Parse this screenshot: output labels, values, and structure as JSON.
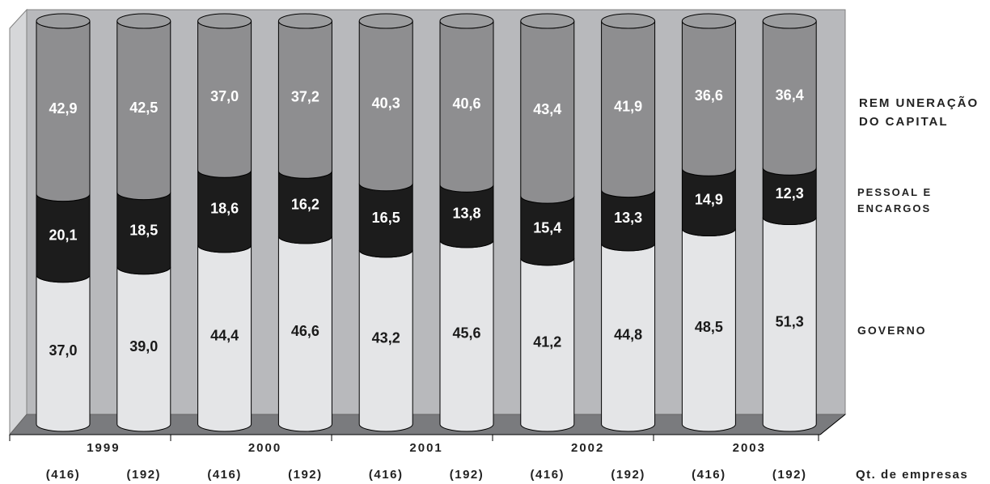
{
  "chart_data": {
    "type": "bar",
    "stacked": true,
    "style": "3d-cylinder",
    "year_groups": [
      "1999",
      "2000",
      "2001",
      "2002",
      "2003"
    ],
    "company_counts": [
      "(416)",
      "(192)",
      "(416)",
      "(192)",
      "(416)",
      "(192)",
      "(416)",
      "(192)",
      "(416)",
      "(192)"
    ],
    "qt_label": "Qt. de empresas",
    "series": [
      {
        "name": "GOVERNO",
        "color": "#e4e5e7",
        "values": [
          37.0,
          39.0,
          44.4,
          46.6,
          43.2,
          45.6,
          41.2,
          44.8,
          48.5,
          51.3
        ],
        "labels": [
          "37,0",
          "39,0",
          "44,4",
          "46,6",
          "43,2",
          "45,6",
          "41,2",
          "44,8",
          "48,5",
          "51,3"
        ]
      },
      {
        "name": "PESSOAL E ENCARGOS",
        "color": "#1c1c1c",
        "values": [
          20.1,
          18.5,
          18.6,
          16.2,
          16.5,
          13.8,
          15.4,
          13.3,
          14.9,
          12.3
        ],
        "labels": [
          "20,1",
          "18,5",
          "18,6",
          "16,2",
          "16,5",
          "13,8",
          "15,4",
          "13,3",
          "14,9",
          "12,3"
        ]
      },
      {
        "name": "REMUNERAÇÃO DO CAPITAL",
        "color": "#8e8e90",
        "values": [
          42.9,
          42.5,
          37.0,
          37.2,
          40.3,
          40.6,
          43.4,
          41.9,
          36.6,
          36.4
        ],
        "labels": [
          "42,9",
          "42,5",
          "37,0",
          "37,2",
          "40,3",
          "40,6",
          "43,4",
          "41,9",
          "36,6",
          "36,4"
        ]
      }
    ],
    "legend": {
      "capital_line1": "REM UNERAÇÃO",
      "capital_line2": "DO CAPITAL",
      "pessoal_line1": "PESSOAL E",
      "pessoal_line2": "ENCARGOS",
      "governo": "GOVERNO"
    },
    "ylim": [
      0,
      100
    ],
    "grid": false
  }
}
